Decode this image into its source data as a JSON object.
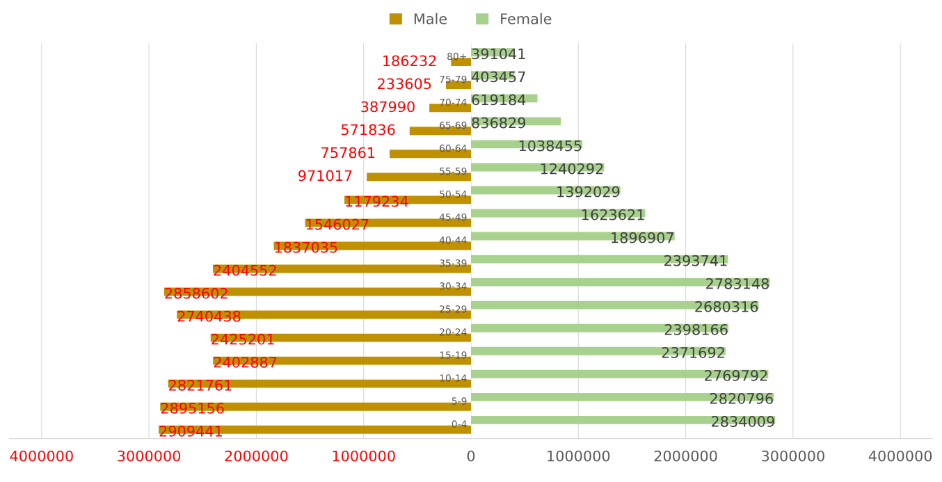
{
  "chart_data": [
    {
      "type": "bar",
      "orientation": "horizontal",
      "categories": [
        "80+",
        "75-79",
        "70-74",
        "65-69",
        "60-64",
        "55-59",
        "50-54",
        "45-49",
        "40-44",
        "35-39",
        "30-34",
        "25-29",
        "20-24",
        "15-19",
        "10-14",
        "5-9",
        "0-4"
      ],
      "series": [
        {
          "name": "Male",
          "color": "#bf9000",
          "values": [
            186232,
            233605,
            387990,
            571836,
            757861,
            971017,
            1179234,
            1546027,
            1837035,
            2404552,
            2858602,
            2740438,
            2425201,
            2402887,
            2821761,
            2895156,
            2909441
          ]
        }
      ],
      "data_labels": true,
      "xlim": [
        4300000,
        0
      ],
      "xticks": [
        4000000,
        3000000,
        2000000,
        1000000
      ],
      "grid": "x",
      "legend": "top"
    },
    {
      "type": "bar",
      "orientation": "horizontal",
      "series": [
        {
          "name": "Female",
          "color": "#a9d18e",
          "values": [
            391041,
            403457,
            619184,
            836829,
            1038455,
            1240292,
            1392029,
            1623621,
            1896907,
            2393741,
            2783148,
            2680316,
            2398166,
            2371692,
            2769792,
            2820796,
            2834009
          ]
        }
      ],
      "data_labels": true,
      "xlim": [
        0,
        4300000
      ],
      "categories": [
        null,
        null,
        null,
        null,
        null,
        null,
        null,
        null,
        null,
        null,
        null,
        null,
        null,
        null,
        null,
        null,
        null
      ],
      "xticks": [
        0,
        1000000,
        2000000,
        3000000,
        4000000
      ],
      "tick_labels": "x",
      "grid": "x",
      "legend": "top"
    }
  ]
}
